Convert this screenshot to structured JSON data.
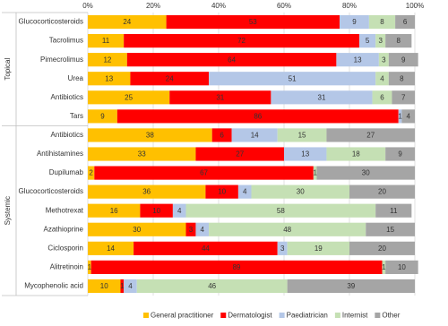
{
  "chart_data": {
    "type": "stacked-bar",
    "groups": [
      {
        "name": "Topical",
        "categories": [
          "Glucocorticosteroids",
          "Tacrolimus",
          "Pimecrolimus",
          "Urea",
          "Antibiotics",
          "Tars"
        ]
      },
      {
        "name": "Systemic",
        "categories": [
          "Antibiotics",
          "Antihistamines",
          "Dupilumab",
          "Glucocorticosteroids",
          "Methotrexat",
          "Azathioprine",
          "Ciclosporin",
          "Alitretinoin",
          "Mycophenolic acid"
        ]
      }
    ],
    "series": [
      {
        "name": "General practitioner",
        "color": "#ffc000",
        "values": [
          24,
          11,
          12,
          13,
          25,
          9,
          38,
          33,
          2,
          36,
          16,
          30,
          14,
          1,
          10
        ]
      },
      {
        "name": "Dermatologist",
        "color": "#ff0000",
        "values": [
          53,
          72,
          64,
          24,
          31,
          86,
          6,
          27,
          67,
          10,
          10,
          3,
          44,
          89,
          1
        ]
      },
      {
        "name": "Paediatrician",
        "color": "#b4c7e7",
        "values": [
          9,
          5,
          13,
          51,
          31,
          1,
          14,
          13,
          null,
          4,
          4,
          4,
          3,
          null,
          4
        ]
      },
      {
        "name": "Internist",
        "color": "#c5e0b4",
        "values": [
          8,
          3,
          3,
          4,
          6,
          null,
          15,
          18,
          1,
          30,
          58,
          48,
          19,
          1,
          46
        ]
      },
      {
        "name": "Other",
        "color": "#a5a5a5",
        "values": [
          6,
          8,
          9,
          8,
          7,
          4,
          27,
          9,
          30,
          20,
          11,
          15,
          20,
          10,
          39
        ]
      }
    ],
    "xlim": [
      0,
      100
    ],
    "xticks": [
      {
        "value": 0,
        "label": "0%"
      },
      {
        "value": 20,
        "label": "20%"
      },
      {
        "value": 40,
        "label": "40%"
      },
      {
        "value": 60,
        "label": "60%"
      },
      {
        "value": 80,
        "label": "80%"
      },
      {
        "value": 100,
        "label": "100%"
      }
    ],
    "grid": true,
    "legend": "bottom"
  }
}
